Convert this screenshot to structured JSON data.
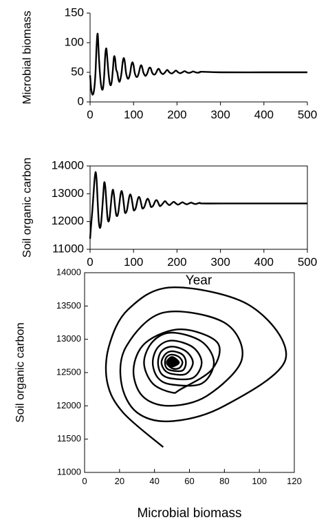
{
  "chart_data": [
    {
      "type": "line",
      "ylabel": "Microbial biomass",
      "color": "#000000",
      "x": [
        0,
        2.5,
        5,
        7.5,
        10,
        12.5,
        15,
        17.5,
        20,
        22.5,
        25,
        27.5,
        30,
        32.5,
        35,
        37.5,
        40,
        42.5,
        45,
        47.5,
        50,
        52.5,
        55,
        57.5,
        60,
        62.5,
        65,
        67.5,
        70,
        72.5,
        75,
        77.5,
        80,
        82.5,
        85,
        87.5,
        90,
        92.5,
        95,
        97.5,
        100,
        102.5,
        105,
        107.5,
        110,
        112.5,
        115,
        117.5,
        120,
        122.5,
        125,
        127.5,
        130,
        132.5,
        135,
        137.5,
        140,
        142.5,
        145,
        147.5,
        150,
        152.5,
        155,
        157.5,
        160,
        162.5,
        167.5,
        172.5,
        177.5,
        182.5,
        187.5,
        192.5,
        197.5,
        202.5,
        207.5,
        212.5,
        217.5,
        222.5,
        227.5,
        232.5,
        237.5,
        242.5,
        247.5,
        252.5,
        257.5,
        300,
        400,
        500
      ],
      "values": [
        45,
        22,
        13,
        14,
        25,
        50,
        95,
        115,
        80,
        50,
        30,
        21,
        24,
        45,
        80,
        90,
        70,
        48,
        33,
        28,
        35,
        55,
        76,
        73,
        55,
        50,
        39,
        34,
        39,
        50,
        67,
        74,
        67,
        50,
        42,
        39,
        42,
        50,
        62,
        67,
        62,
        50,
        44,
        42,
        44,
        50,
        58,
        62,
        58,
        50,
        46,
        44,
        46,
        50,
        56,
        58,
        56,
        50,
        47,
        46,
        47,
        50,
        54,
        56,
        54,
        50,
        47,
        50,
        54,
        50,
        48,
        50,
        53,
        50,
        48.5,
        50,
        52,
        50,
        49,
        50,
        51.5,
        50,
        49.3,
        50,
        51,
        50,
        50,
        50
      ],
      "xlim": [
        0,
        500
      ],
      "xticks": [
        0,
        100,
        200,
        300,
        400,
        500
      ],
      "ylim": [
        0,
        150
      ],
      "yticks": [
        0,
        50,
        100,
        150
      ]
    },
    {
      "type": "line",
      "ylabel": "Soil organic carbon",
      "xlabel": "Year",
      "color": "#000000",
      "x": [
        0,
        2.5,
        5,
        7.5,
        10,
        12.5,
        15,
        17.5,
        20,
        22.5,
        25,
        27.5,
        30,
        32.5,
        35,
        37.5,
        40,
        42.5,
        45,
        47.5,
        50,
        52.5,
        55,
        57.5,
        60,
        62.5,
        65,
        67.5,
        70,
        72.5,
        75,
        77.5,
        80,
        82.5,
        85,
        87.5,
        90,
        92.5,
        95,
        97.5,
        100,
        102.5,
        105,
        107.5,
        110,
        112.5,
        115,
        117.5,
        120,
        122.5,
        125,
        127.5,
        130,
        132.5,
        135,
        137.5,
        140,
        142.5,
        145,
        147.5,
        150,
        152.5,
        155,
        157.5,
        160,
        162.5,
        167.5,
        172.5,
        177.5,
        182.5,
        187.5,
        192.5,
        197.5,
        202.5,
        207.5,
        212.5,
        217.5,
        222.5,
        227.5,
        232.5,
        237.5,
        242.5,
        247.5,
        252.5,
        257.5,
        300,
        400,
        500
      ],
      "values": [
        11380,
        11900,
        12350,
        12900,
        13450,
        13780,
        13500,
        12700,
        12000,
        11770,
        11900,
        12350,
        12900,
        13400,
        13250,
        12700,
        12150,
        12000,
        12150,
        12550,
        12950,
        13150,
        12950,
        12550,
        12250,
        12200,
        12335,
        12650,
        12965,
        13100,
        12965,
        12650,
        12335,
        12320,
        12420,
        12650,
        12880,
        12980,
        12880,
        12650,
        12420,
        12410,
        12480,
        12650,
        12820,
        12890,
        12820,
        12650,
        12480,
        12480,
        12530,
        12650,
        12770,
        12820,
        12770,
        12650,
        12530,
        12530,
        12565,
        12650,
        12735,
        12770,
        12735,
        12650,
        12565,
        12565,
        12650,
        12735,
        12650,
        12590,
        12650,
        12710,
        12650,
        12607,
        12650,
        12693,
        12650,
        12620,
        12650,
        12680,
        12650,
        12628,
        12650,
        12672,
        12650,
        12650,
        12650,
        12650
      ],
      "xlim": [
        0,
        500
      ],
      "xticks": [
        0,
        100,
        200,
        300,
        400,
        500
      ],
      "ylim": [
        11000,
        14000
      ],
      "yticks": [
        11000,
        12000,
        13000,
        14000
      ]
    },
    {
      "type": "line",
      "ylabel": "Soil organic carbon",
      "xlabel": "Microbial biomass",
      "color": "#000000",
      "x": [
        45,
        22,
        13,
        14,
        25,
        50,
        95,
        115,
        80,
        50,
        30,
        21,
        24,
        45,
        80,
        90,
        70,
        48,
        33,
        28,
        35,
        55,
        76,
        73,
        55,
        50,
        39,
        34,
        39,
        50,
        67,
        74,
        67,
        50,
        42,
        39,
        42,
        50,
        62,
        67,
        62,
        50,
        44,
        42,
        44,
        50,
        58,
        62,
        58,
        50,
        46,
        44,
        46,
        50,
        56,
        58,
        56,
        50,
        47,
        46,
        47,
        50,
        54,
        56,
        54,
        50,
        47,
        50,
        54,
        50,
        48,
        50,
        53,
        50,
        48.5,
        50,
        52,
        50,
        49,
        50,
        51.5,
        50,
        49.3,
        50,
        51,
        50,
        50,
        50
      ],
      "values": [
        11380,
        11900,
        12350,
        12900,
        13450,
        13780,
        13500,
        12700,
        12000,
        11770,
        11900,
        12350,
        12900,
        13400,
        13250,
        12700,
        12150,
        12000,
        12150,
        12550,
        12950,
        13150,
        12950,
        12550,
        12250,
        12200,
        12335,
        12650,
        12965,
        13100,
        12965,
        12650,
        12335,
        12320,
        12420,
        12650,
        12880,
        12980,
        12880,
        12650,
        12420,
        12410,
        12480,
        12650,
        12820,
        12890,
        12820,
        12650,
        12480,
        12480,
        12530,
        12650,
        12770,
        12820,
        12770,
        12650,
        12530,
        12530,
        12565,
        12650,
        12735,
        12770,
        12735,
        12650,
        12565,
        12565,
        12650,
        12735,
        12650,
        12590,
        12650,
        12710,
        12650,
        12607,
        12650,
        12693,
        12650,
        12620,
        12650,
        12680,
        12650,
        12628,
        12650,
        12672,
        12650,
        12650,
        12650,
        12650
      ],
      "xlim": [
        0,
        120
      ],
      "xticks": [
        0,
        20,
        40,
        60,
        80,
        100,
        120
      ],
      "ylim": [
        11000,
        14000
      ],
      "yticks": [
        11000,
        11500,
        12000,
        12500,
        13000,
        13500,
        14000
      ]
    }
  ]
}
